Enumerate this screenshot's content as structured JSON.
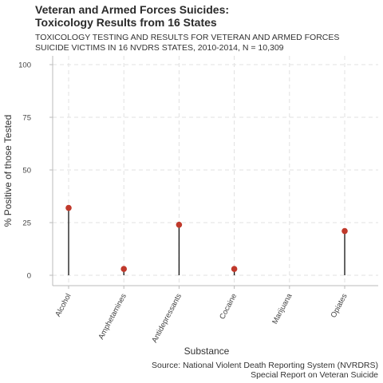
{
  "chart_data": {
    "type": "lollipop",
    "title_lines": [
      "Veteran and Armed Forces Suicides:",
      "Toxicology Results from 16 States"
    ],
    "subtitle_lines": [
      "TOXICOLOGY TESTING AND RESULTS FOR VETERAN AND ARMED FORCES",
      "SUICIDE VICTIMS IN 16 NVDRS STATES, 2010-2014, N = 10,309"
    ],
    "xlabel": "Substance",
    "ylabel": "% Positive of those Tested",
    "categories": [
      "Alcohol",
      "Amphetamines",
      "Antidepressants",
      "Cocaine",
      "Marijuana",
      "Opiates"
    ],
    "values": [
      32,
      3,
      24,
      3,
      null,
      21
    ],
    "ylim": [
      0,
      100
    ],
    "yticks": [
      0,
      25,
      50,
      75,
      100
    ],
    "grid": true,
    "caption_lines": [
      "Source: National Violent Death Reporting System (NVRDRS)",
      "Special Report on Veteran Suicide"
    ],
    "colors": {
      "point": "#c0392b",
      "stem": "#111111",
      "grid": "#e0e0e0",
      "axis": "#bbbbbb"
    }
  }
}
